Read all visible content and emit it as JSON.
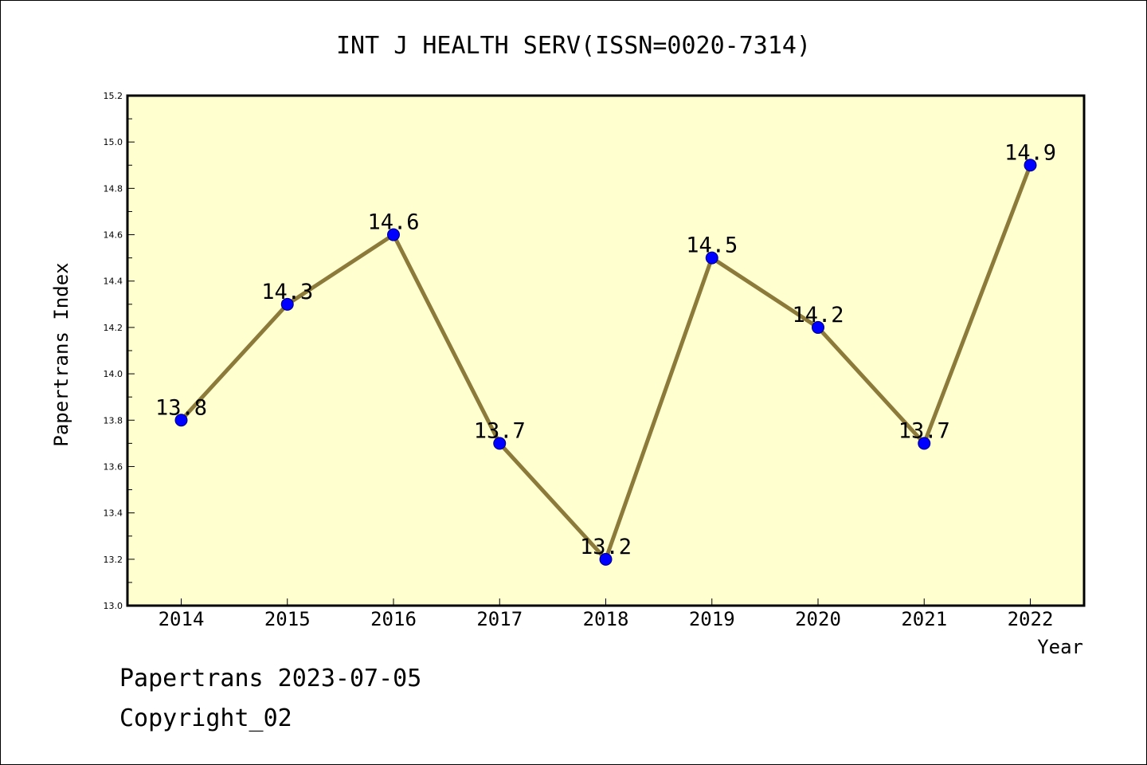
{
  "footer": {
    "line1": "Papertrans 2023-07-05",
    "line2": "Copyright_02"
  },
  "chart_data": {
    "type": "line",
    "title": "INT J HEALTH SERV(ISSN=0020-7314)",
    "xlabel": "Year",
    "ylabel": "Papertrans Index",
    "x": [
      "2014",
      "2015",
      "2016",
      "2017",
      "2018",
      "2019",
      "2020",
      "2021",
      "2022"
    ],
    "y": [
      13.8,
      14.3,
      14.6,
      13.7,
      13.2,
      14.5,
      14.2,
      13.7,
      14.9
    ],
    "data_labels": [
      "13.8",
      "14.3",
      "14.6",
      "13.7",
      "13.2",
      "14.5",
      "14.2",
      "13.7",
      "14.9"
    ],
    "ylim": [
      13.0,
      15.2
    ],
    "yticks": [
      "13.0",
      "13.2",
      "13.4",
      "13.6",
      "13.8",
      "14.0",
      "14.2",
      "14.4",
      "14.6",
      "14.8",
      "15.0",
      "15.2"
    ],
    "grid": false,
    "legend": "none",
    "colors": {
      "plot_background": "#ffffd0",
      "line": "#8c7a3a",
      "marker": "#0000ff",
      "marker_edge": "#000080"
    }
  }
}
